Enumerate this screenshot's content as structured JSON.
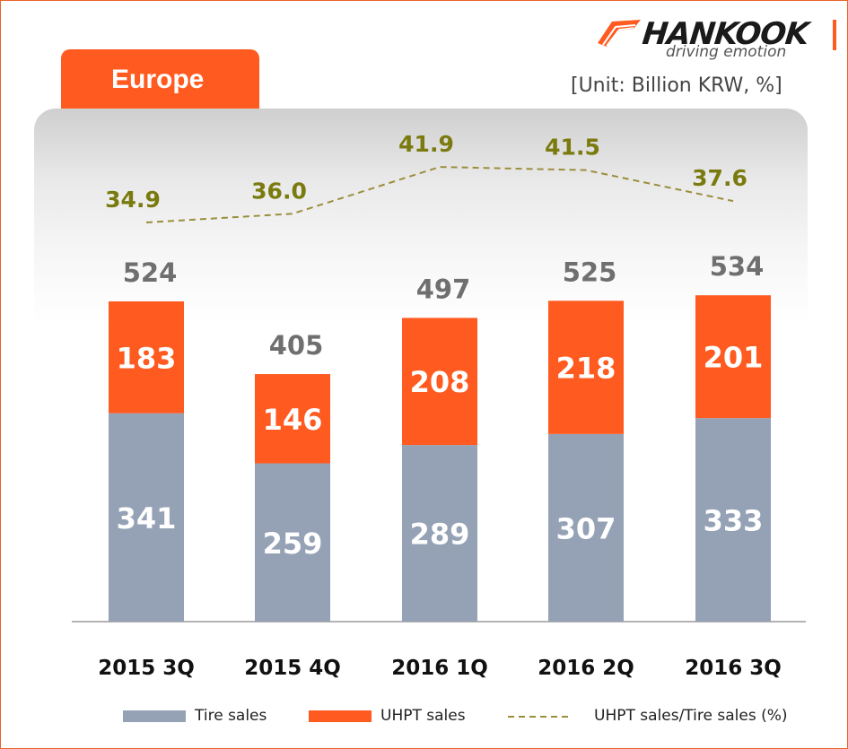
{
  "brand": {
    "name": "HANKOOK",
    "tagline": "driving emotion",
    "color": "#ff5a1f"
  },
  "region_label": "Europe",
  "unit_label": "[Unit: Billion KRW, %]",
  "chart_data": {
    "type": "bar",
    "stacked": true,
    "categories": [
      "2015 3Q",
      "2015 4Q",
      "2016 1Q",
      "2016 2Q",
      "2016 3Q"
    ],
    "series": [
      {
        "name": "Tire sales",
        "values": [
          341,
          259,
          289,
          307,
          333
        ],
        "color": "#95a2b6"
      },
      {
        "name": "UHPT sales",
        "values": [
          183,
          146,
          208,
          218,
          201
        ],
        "color": "#ff5a1f"
      }
    ],
    "totals": [
      524,
      405,
      497,
      525,
      534
    ],
    "line_series": {
      "name": "UHPT sales/Tire sales (%)",
      "values": [
        34.9,
        36.0,
        41.9,
        41.5,
        37.6
      ],
      "labels": [
        "34.9",
        "36.0",
        "41.9",
        "41.5",
        "37.6"
      ],
      "color": "#9c8e3c",
      "label_color": "#7a7a0f",
      "style": "dashed"
    },
    "legend_position": "bottom"
  }
}
